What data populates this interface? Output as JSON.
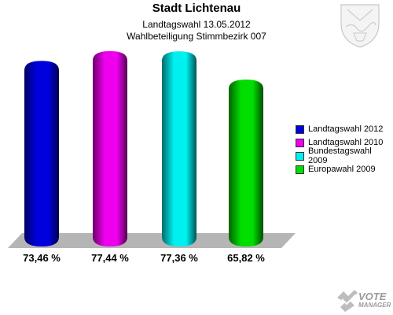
{
  "header": {
    "title": "Stadt Lichtenau",
    "subtitle1": "Landtagswahl 13.05.2012",
    "subtitle2": "Wahlbeteiligung Stimmbezirk 007"
  },
  "chart_data": {
    "type": "bar",
    "title": "Stadt Lichtenau",
    "subtitle": "Wahlbeteiligung Stimmbezirk 007",
    "categories": [
      "Landtagswahl 2012",
      "Landtagswahl 2010",
      "Bundestagswahl 2009",
      "Europawahl 2009"
    ],
    "values": [
      73.46,
      77.44,
      77.36,
      65.82
    ],
    "value_labels": [
      "73,46 %",
      "77,44 %",
      "77,36 %",
      "65,82 %"
    ],
    "colors": [
      "#0000dd",
      "#ee00ee",
      "#00f0f0",
      "#00dd00"
    ],
    "xlabel": "",
    "ylabel": "",
    "grid": false,
    "legend_position": "right"
  },
  "legend": {
    "items": [
      {
        "label": "Landtagswahl 2012",
        "color": "#0000dd"
      },
      {
        "label": "Landtagswahl 2010",
        "color": "#ee00ee"
      },
      {
        "label": "Bundestagswahl 2009",
        "color": "#00f0f0"
      },
      {
        "label": "Europawahl 2009",
        "color": "#00dd00"
      }
    ]
  },
  "branding": {
    "logo_line1": "VOTE",
    "logo_line2": "MANAGER",
    "coat_icon": "coat-of-arms-icon",
    "logo_icon": "votemanager-logo-icon"
  }
}
